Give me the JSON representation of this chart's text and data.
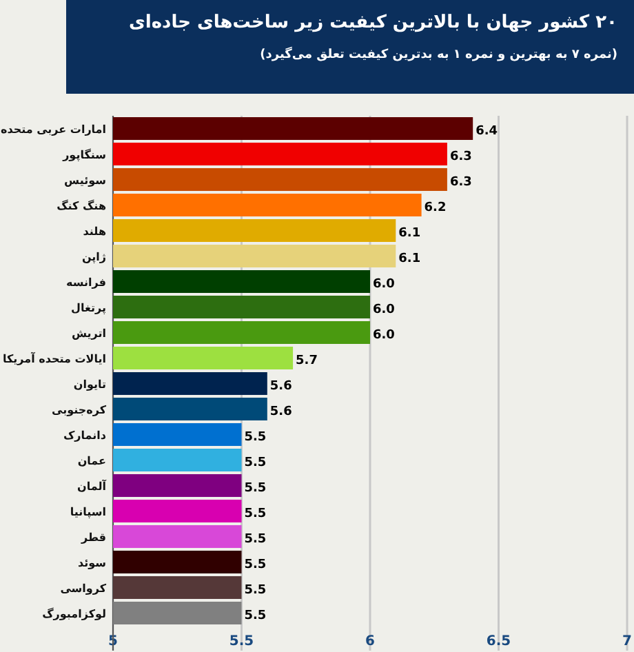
{
  "chart_data": {
    "type": "bar",
    "orientation": "horizontal",
    "title": "۲۰ کشور جهان با بالاترین کیفیت زیر ساخت‌های جاده‌ای",
    "subtitle": "(نمره ۷ به بهترین و نمره ۱ به بدترین کیفیت تعلق می‌گیرد)",
    "categories": [
      "امارات عربی متحده",
      "سنگاپور",
      "سوئیس",
      "هنگ کنگ",
      "هلند",
      "ژاپن",
      "فرانسه",
      "پرتغال",
      "اتریش",
      "ایالات متحده آمریکا",
      "تایوان",
      "کره‌جنوبی",
      "دانمارک",
      "عمان",
      "آلمان",
      "اسپانیا",
      "قطر",
      "سوئد",
      "کرواسی",
      "لوکزامبورگ"
    ],
    "values": [
      6.4,
      6.3,
      6.3,
      6.2,
      6.1,
      6.1,
      6.0,
      6.0,
      6.0,
      5.7,
      5.6,
      5.6,
      5.5,
      5.5,
      5.5,
      5.5,
      5.5,
      5.5,
      5.5,
      5.5
    ],
    "value_labels": [
      "6.4",
      "6.3",
      "6.3",
      "6.2",
      "6.1",
      "6.1",
      "6.0",
      "6.0",
      "6.0",
      "5.7",
      "5.6",
      "5.6",
      "5.5",
      "5.5",
      "5.5",
      "5.5",
      "5.5",
      "5.5",
      "5.5",
      "5.5"
    ],
    "colors": [
      "#5c0000",
      "#f00000",
      "#c84b00",
      "#ff7000",
      "#e0ab00",
      "#e6d27a",
      "#003f00",
      "#2d6e10",
      "#4a9a10",
      "#9de040",
      "#00234f",
      "#004a78",
      "#0070d0",
      "#30b0e0",
      "#7f0080",
      "#d800b0",
      "#d848d8",
      "#300000",
      "#553838",
      "#808080"
    ],
    "xlim": [
      5,
      7
    ],
    "xticks": [
      5,
      5.5,
      6,
      6.5,
      7
    ],
    "grid": "x"
  }
}
